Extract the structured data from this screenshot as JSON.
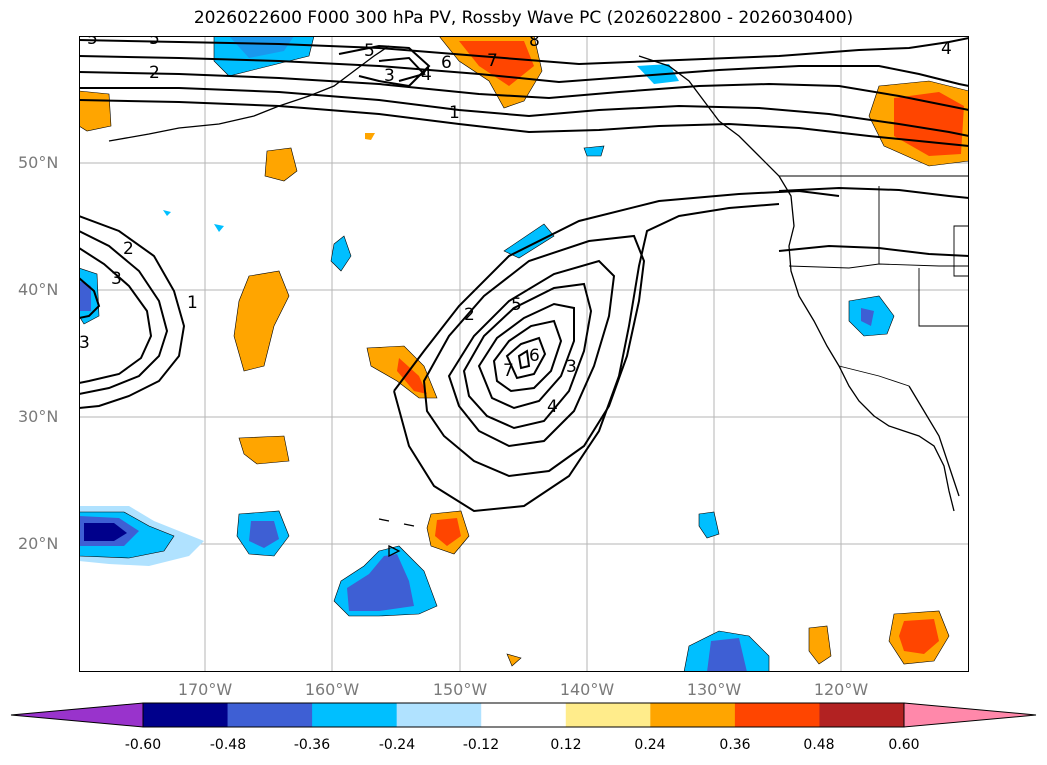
{
  "title": "2026022600 F000 300 hPa PV, Rossby Wave PC (2026022800 - 2026030400)",
  "lat_labels": [
    "50°N",
    "40°N",
    "30°N",
    "20°N"
  ],
  "lon_labels": [
    "170°W",
    "160°W",
    "150°W",
    "140°W",
    "130°W",
    "120°W"
  ],
  "colorbar": {
    "tick_labels": [
      "-0.60",
      "-0.48",
      "-0.36",
      "-0.24",
      "-0.12",
      "0.12",
      "0.24",
      "0.36",
      "0.48",
      "0.60"
    ],
    "colors": [
      "#9933cc",
      "#00008b",
      "#3e5fd4",
      "#00bfff",
      "#b0e2ff",
      "#ffffff",
      "#ffec8b",
      "#ffa500",
      "#ff4500",
      "#b22222",
      "#ff88aa"
    ]
  },
  "contour_labels": [
    "5",
    "5",
    "2",
    "5",
    "6",
    "7",
    "8",
    "3",
    "4",
    "4",
    "1",
    "2",
    "3",
    "1",
    "3",
    "2",
    "5",
    "6",
    "7",
    "3",
    "4"
  ]
}
